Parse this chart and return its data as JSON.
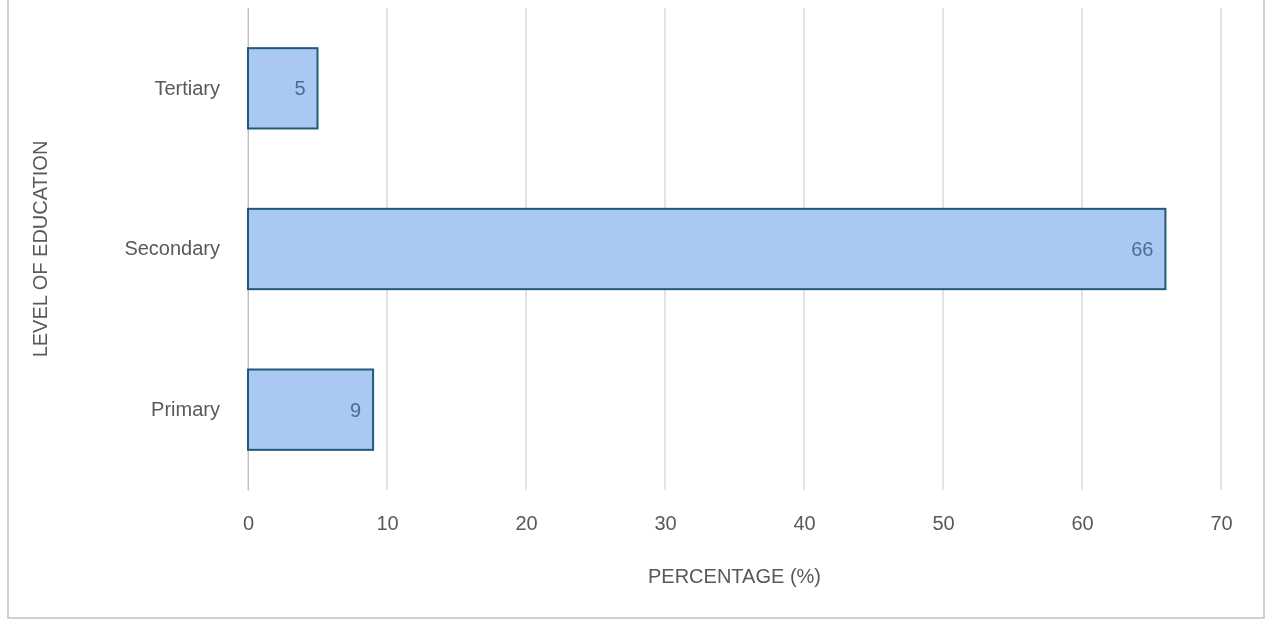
{
  "chart_data": {
    "type": "bar",
    "orientation": "horizontal",
    "xlabel": "PERCENTAGE (%)",
    "ylabel": "LEVEL OF EDUCATION",
    "categories": [
      "Tertiary",
      "Secondary",
      "Primary"
    ],
    "values": [
      5,
      66,
      9
    ],
    "color": "#a9c8f2",
    "xlim": [
      0,
      70
    ],
    "xticks": [
      0,
      10,
      20,
      30,
      40,
      50,
      60,
      70
    ],
    "grid": "x",
    "data_labels": true
  }
}
